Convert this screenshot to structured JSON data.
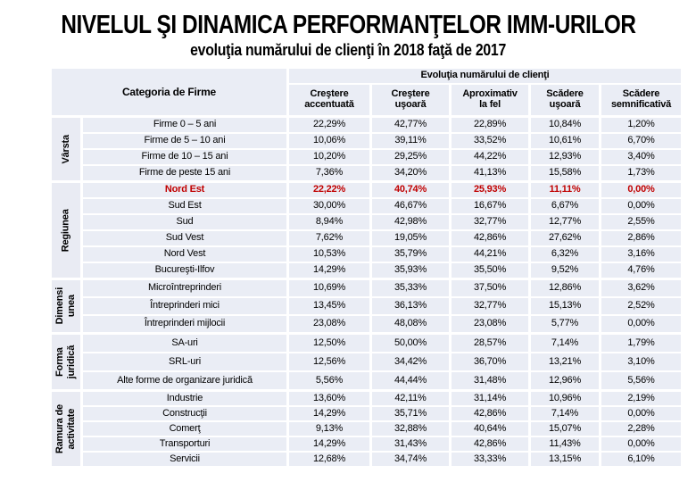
{
  "title": "NIVELUL ŞI DINAMICA PERFORMANŢELOR IMM-URILOR",
  "subtitle": "evoluţia numărului de clienţi în 2018 faţă de 2017",
  "colors": {
    "highlight_red": "#c00000",
    "cell_background": "#eaedf5",
    "label_background": "#e9ebf3",
    "page_background": "#ffffff",
    "text": "#000000"
  },
  "table": {
    "category_header": "Categoria de Firme",
    "group_header": "Evoluţia numărului de clienţi",
    "columns": [
      [
        "Creştere",
        "accentuată"
      ],
      [
        "Creştere",
        "uşoară"
      ],
      [
        "Aproximativ",
        "la fel"
      ],
      [
        "Scădere",
        "uşoară"
      ],
      [
        "Scădere",
        "semnificativă"
      ]
    ],
    "groups": [
      {
        "label_lines": [
          "Vârsta"
        ],
        "rows": [
          {
            "category": "Firme 0 –  5 ani",
            "values": [
              "22,29%",
              "42,77%",
              "22,89%",
              "10,84%",
              "1,20%"
            ],
            "highlight": false
          },
          {
            "category": "Firme de 5 – 10 ani",
            "values": [
              "10,06%",
              "39,11%",
              "33,52%",
              "10,61%",
              "6,70%"
            ],
            "highlight": false
          },
          {
            "category": "Firme de 10 – 15 ani",
            "values": [
              "10,20%",
              "29,25%",
              "44,22%",
              "12,93%",
              "3,40%"
            ],
            "highlight": false
          },
          {
            "category": "Firme de peste 15 ani",
            "values": [
              "7,36%",
              "34,20%",
              "41,13%",
              "15,58%",
              "1,73%"
            ],
            "highlight": false
          }
        ]
      },
      {
        "label_lines": [
          "Regiunea"
        ],
        "rows": [
          {
            "category": "Nord Est",
            "values": [
              "22,22%",
              "40,74%",
              "25,93%",
              "11,11%",
              "0,00%"
            ],
            "highlight": true
          },
          {
            "category": "Sud Est",
            "values": [
              "30,00%",
              "46,67%",
              "16,67%",
              "6,67%",
              "0,00%"
            ],
            "highlight": false
          },
          {
            "category": "Sud",
            "values": [
              "8,94%",
              "42,98%",
              "32,77%",
              "12,77%",
              "2,55%"
            ],
            "highlight": false
          },
          {
            "category": "Sud Vest",
            "values": [
              "7,62%",
              "19,05%",
              "42,86%",
              "27,62%",
              "2,86%"
            ],
            "highlight": false
          },
          {
            "category": "Nord Vest",
            "values": [
              "10,53%",
              "35,79%",
              "44,21%",
              "6,32%",
              "3,16%"
            ],
            "highlight": false
          },
          {
            "category": "Bucureşti-Ilfov",
            "values": [
              "14,29%",
              "35,93%",
              "35,50%",
              "9,52%",
              "4,76%"
            ],
            "highlight": false
          }
        ]
      },
      {
        "label_lines": [
          "Dimensi",
          "unea"
        ],
        "rows": [
          {
            "category": "Microîntreprinderi",
            "values": [
              "10,69%",
              "35,33%",
              "37,50%",
              "12,86%",
              "3,62%"
            ],
            "highlight": false
          },
          {
            "category": "Întreprinderi mici",
            "values": [
              "13,45%",
              "36,13%",
              "32,77%",
              "15,13%",
              "2,52%"
            ],
            "highlight": false
          },
          {
            "category": "Întreprinderi mijlocii",
            "values": [
              "23,08%",
              "48,08%",
              "23,08%",
              "5,77%",
              "0,00%"
            ],
            "highlight": false
          }
        ]
      },
      {
        "label_lines": [
          "Forma",
          "juridică"
        ],
        "rows": [
          {
            "category": "SA-uri",
            "values": [
              "12,50%",
              "50,00%",
              "28,57%",
              "7,14%",
              "1,79%"
            ],
            "highlight": false
          },
          {
            "category": "SRL-uri",
            "values": [
              "12,56%",
              "34,42%",
              "36,70%",
              "13,21%",
              "3,10%"
            ],
            "highlight": false
          },
          {
            "category": "Alte forme de organizare juridică",
            "values": [
              "5,56%",
              "44,44%",
              "31,48%",
              "12,96%",
              "5,56%"
            ],
            "highlight": false
          }
        ]
      },
      {
        "label_lines": [
          "Ramura de",
          "activitate"
        ],
        "rows": [
          {
            "category": "Industrie",
            "values": [
              "13,60%",
              "42,11%",
              "31,14%",
              "10,96%",
              "2,19%"
            ],
            "highlight": false
          },
          {
            "category": "Construcţii",
            "values": [
              "14,29%",
              "35,71%",
              "42,86%",
              "7,14%",
              "0,00%"
            ],
            "highlight": false
          },
          {
            "category": "Comerţ",
            "values": [
              "9,13%",
              "32,88%",
              "40,64%",
              "15,07%",
              "2,28%"
            ],
            "highlight": false
          },
          {
            "category": "Transporturi",
            "values": [
              "14,29%",
              "31,43%",
              "42,86%",
              "11,43%",
              "0,00%"
            ],
            "highlight": false
          },
          {
            "category": "Servicii",
            "values": [
              "12,68%",
              "34,74%",
              "33,33%",
              "13,15%",
              "6,10%"
            ],
            "highlight": false
          }
        ]
      }
    ]
  }
}
